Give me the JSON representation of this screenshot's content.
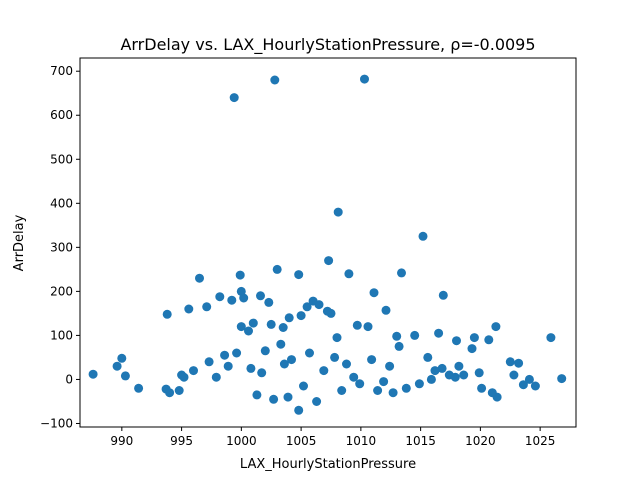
{
  "chart_data": {
    "type": "scatter",
    "title": "ArrDelay vs. LAX_HourlyStationPressure, ρ=-0.0095",
    "xlabel": "LAX_HourlyStationPressure",
    "ylabel": "ArrDelay",
    "xlim": [
      986.5,
      1028.0
    ],
    "ylim": [
      -108,
      730
    ],
    "xticks": [
      990,
      995,
      1000,
      1005,
      1010,
      1015,
      1020,
      1025
    ],
    "yticks": [
      -100,
      0,
      100,
      200,
      300,
      400,
      500,
      600,
      700
    ],
    "grid": false,
    "color": "#1f77b4",
    "x": [
      999.4,
      1002.8,
      1010.3,
      1008.1,
      1015.2,
      1013.4,
      1007.3,
      1009.0,
      1003.0,
      1004.8,
      999.9,
      1000.0,
      1001.6,
      1002.3,
      1011.1,
      1016.9,
      998.2,
      999.2,
      996.5,
      1000.2,
      1006.5,
      1005.5,
      1005.0,
      1006.0,
      1007.5,
      1007.2,
      1012.1,
      1000.0,
      1002.5,
      1004.0,
      1016.5,
      1021.3,
      1025.9,
      993.8,
      995.6,
      997.1,
      1010.6,
      1009.7,
      1003.5,
      1001.0,
      1018.0,
      1019.5,
      1020.7,
      1014.5,
      1013.0,
      987.6,
      989.6,
      990.0,
      990.3,
      991.4,
      993.7,
      994.0,
      994.8,
      995.2,
      1022.5,
      1023.2,
      1024.1,
      1024.6,
      1026.8,
      1022.8,
      1023.6,
      1021.4,
      1004.8,
      1003.3,
      1000.6,
      1019.3,
      1015.6,
      1005.7,
      1008.0,
      1013.2,
      996.0,
      995.0,
      1018.2,
      1016.8,
      1011.9,
      1001.7,
      997.3,
      998.6,
      1008.8,
      1017.4,
      1020.1,
      1012.7,
      1002.0,
      1004.2,
      1006.9,
      1009.4,
      1014.9,
      1019.9,
      998.9,
      1011.4,
      1007.8,
      1003.9,
      1015.9,
      1000.8,
      1017.9,
      1005.2,
      1012.4,
      999.6,
      1009.9,
      1021.0,
      1002.7,
      1010.9,
      1006.3,
      1013.8,
      1018.6,
      1001.3,
      1016.2,
      997.9,
      1008.4,
      1003.6
    ],
    "y": [
      640,
      680,
      682,
      380,
      325,
      242,
      270,
      240,
      250,
      238,
      237,
      200,
      190,
      175,
      197,
      191,
      188,
      180,
      230,
      185,
      170,
      165,
      145,
      178,
      150,
      155,
      157,
      120,
      125,
      140,
      105,
      120,
      95,
      148,
      160,
      165,
      120,
      123,
      118,
      128,
      88,
      95,
      90,
      100,
      98,
      12,
      30,
      48,
      8,
      -20,
      -22,
      -30,
      -25,
      5,
      40,
      37,
      0,
      -15,
      2,
      10,
      -12,
      -40,
      -70,
      80,
      110,
      70,
      50,
      60,
      95,
      75,
      20,
      10,
      30,
      25,
      -5,
      15,
      40,
      55,
      35,
      10,
      -20,
      -30,
      65,
      45,
      20,
      5,
      -10,
      15,
      30,
      -25,
      50,
      -40,
      0,
      25,
      5,
      -15,
      30,
      60,
      -10,
      -30,
      -45,
      45,
      -50,
      -20,
      10,
      -35,
      20,
      5,
      -25,
      35
    ]
  }
}
